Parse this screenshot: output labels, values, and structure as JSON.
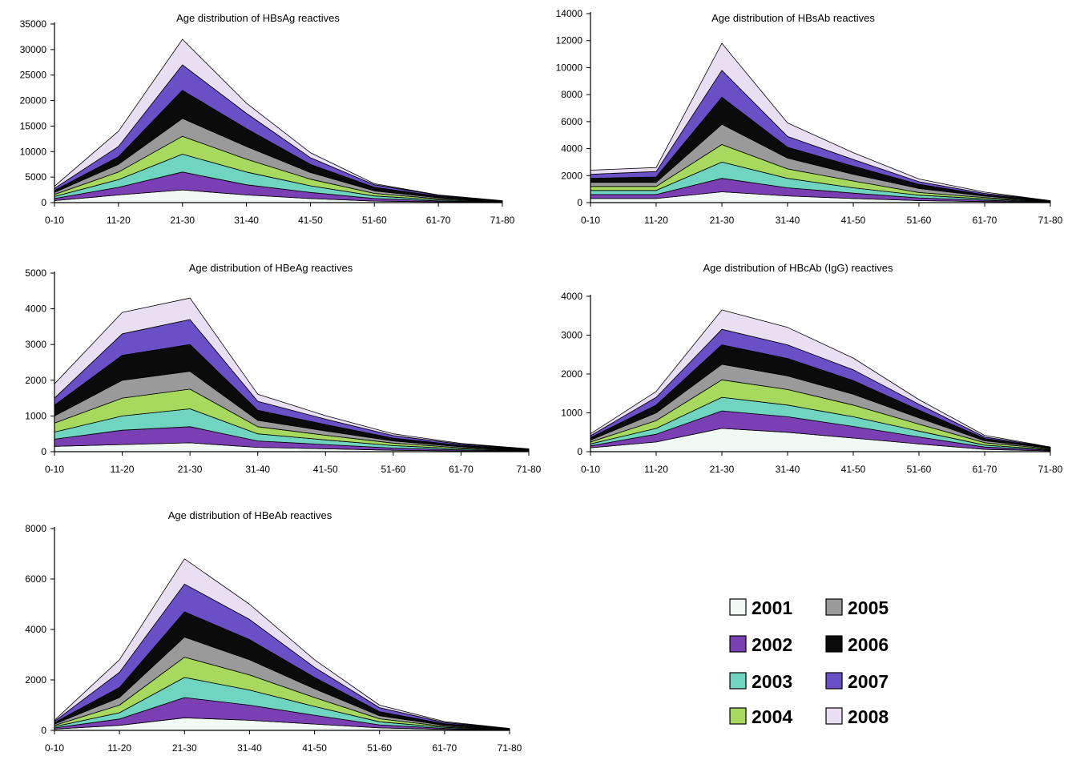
{
  "colors": {
    "2001": "#f1f9f5",
    "2002": "#7a3fb3",
    "2003": "#6fd4c0",
    "2004": "#a6d95e",
    "2005": "#9a9a9a",
    "2006": "#0b0b0b",
    "2007": "#6a4fc6",
    "2008": "#e9def2"
  },
  "legend": [
    {
      "label": "2001",
      "key": "2001"
    },
    {
      "label": "2002",
      "key": "2002"
    },
    {
      "label": "2003",
      "key": "2003"
    },
    {
      "label": "2004",
      "key": "2004"
    },
    {
      "label": "2005",
      "key": "2005"
    },
    {
      "label": "2006",
      "key": "2006"
    },
    {
      "label": "2007",
      "key": "2007"
    },
    {
      "label": "2008",
      "key": "2008"
    }
  ],
  "chart_data": [
    {
      "type": "area",
      "stacked": true,
      "title": "Age distribution of HBsAg reactives",
      "categories": [
        "0-10",
        "11-20",
        "21-30",
        "31-40",
        "41-50",
        "51-60",
        "61-70",
        "71-80"
      ],
      "ylim": [
        0,
        35000
      ],
      "yticks": [
        0,
        5000,
        10000,
        15000,
        20000,
        25000,
        30000,
        35000
      ],
      "series": [
        {
          "name": "2001",
          "values": [
            400,
            1500,
            2500,
            1500,
            800,
            300,
            150,
            50
          ]
        },
        {
          "name": "2002",
          "values": [
            400,
            1500,
            3500,
            2000,
            1200,
            500,
            200,
            50
          ]
        },
        {
          "name": "2003",
          "values": [
            400,
            1500,
            3500,
            2500,
            1300,
            500,
            200,
            50
          ]
        },
        {
          "name": "2004",
          "values": [
            400,
            1500,
            3500,
            2500,
            1300,
            500,
            200,
            50
          ]
        },
        {
          "name": "2005",
          "values": [
            400,
            1500,
            3500,
            2500,
            1300,
            500,
            200,
            50
          ]
        },
        {
          "name": "2006",
          "values": [
            400,
            1500,
            5500,
            3500,
            1600,
            700,
            300,
            50
          ]
        },
        {
          "name": "2007",
          "values": [
            400,
            2000,
            5000,
            3000,
            1300,
            500,
            200,
            50
          ]
        },
        {
          "name": "2008",
          "values": [
            400,
            3000,
            5000,
            2000,
            1000,
            200,
            50,
            50
          ]
        }
      ]
    },
    {
      "type": "area",
      "stacked": true,
      "title": "Age distribution of HBsAb reactives",
      "categories": [
        "0-10",
        "11-20",
        "21-30",
        "31-40",
        "41-50",
        "51-60",
        "61-70",
        "71-80"
      ],
      "ylim": [
        0,
        14000
      ],
      "yticks": [
        0,
        2000,
        4000,
        6000,
        8000,
        10000,
        12000,
        14000
      ],
      "series": [
        {
          "name": "2001",
          "values": [
            300,
            300,
            800,
            500,
            300,
            150,
            80,
            20
          ]
        },
        {
          "name": "2002",
          "values": [
            300,
            300,
            1000,
            600,
            400,
            200,
            100,
            20
          ]
        },
        {
          "name": "2003",
          "values": [
            300,
            300,
            1200,
            700,
            400,
            200,
            100,
            20
          ]
        },
        {
          "name": "2004",
          "values": [
            300,
            300,
            1300,
            700,
            500,
            200,
            100,
            20
          ]
        },
        {
          "name": "2005",
          "values": [
            300,
            300,
            1500,
            800,
            500,
            300,
            100,
            20
          ]
        },
        {
          "name": "2006",
          "values": [
            300,
            400,
            2000,
            800,
            600,
            300,
            100,
            20
          ]
        },
        {
          "name": "2007",
          "values": [
            300,
            400,
            2000,
            800,
            500,
            200,
            100,
            20
          ]
        },
        {
          "name": "2008",
          "values": [
            300,
            300,
            2000,
            1000,
            500,
            200,
            100,
            10
          ]
        }
      ]
    },
    {
      "type": "area",
      "stacked": true,
      "title": "Age distribution of HBeAg reactives",
      "categories": [
        "0-10",
        "11-20",
        "21-30",
        "31-40",
        "41-50",
        "51-60",
        "61-70",
        "71-80"
      ],
      "ylim": [
        0,
        5000
      ],
      "yticks": [
        0,
        1000,
        2000,
        3000,
        4000,
        5000
      ],
      "series": [
        {
          "name": "2001",
          "values": [
            150,
            200,
            250,
            120,
            80,
            40,
            20,
            10
          ]
        },
        {
          "name": "2002",
          "values": [
            200,
            400,
            450,
            180,
            120,
            60,
            30,
            10
          ]
        },
        {
          "name": "2003",
          "values": [
            200,
            400,
            500,
            200,
            130,
            70,
            30,
            10
          ]
        },
        {
          "name": "2004",
          "values": [
            250,
            500,
            550,
            200,
            130,
            70,
            30,
            10
          ]
        },
        {
          "name": "2005",
          "values": [
            200,
            500,
            500,
            180,
            120,
            60,
            30,
            10
          ]
        },
        {
          "name": "2006",
          "values": [
            300,
            700,
            750,
            280,
            180,
            80,
            40,
            10
          ]
        },
        {
          "name": "2007",
          "values": [
            200,
            600,
            700,
            250,
            150,
            70,
            30,
            10
          ]
        },
        {
          "name": "2008",
          "values": [
            400,
            600,
            600,
            200,
            100,
            50,
            20,
            10
          ]
        }
      ]
    },
    {
      "type": "area",
      "stacked": true,
      "title": "Age distribution of HBcAb (IgG) reactives",
      "categories": [
        "0-10",
        "11-20",
        "21-30",
        "31-40",
        "41-50",
        "51-60",
        "61-70",
        "71-80"
      ],
      "ylim": [
        0,
        4000
      ],
      "yticks": [
        0,
        1000,
        2000,
        3000,
        4000
      ],
      "series": [
        {
          "name": "2001",
          "values": [
            100,
            250,
            600,
            500,
            350,
            200,
            60,
            20
          ]
        },
        {
          "name": "2002",
          "values": [
            50,
            200,
            450,
            400,
            300,
            180,
            60,
            20
          ]
        },
        {
          "name": "2003",
          "values": [
            50,
            150,
            350,
            300,
            250,
            150,
            50,
            15
          ]
        },
        {
          "name": "2004",
          "values": [
            50,
            200,
            450,
            400,
            300,
            180,
            60,
            20
          ]
        },
        {
          "name": "2005",
          "values": [
            50,
            200,
            400,
            350,
            280,
            160,
            50,
            15
          ]
        },
        {
          "name": "2006",
          "values": [
            60,
            200,
            500,
            450,
            350,
            200,
            60,
            15
          ]
        },
        {
          "name": "2007",
          "values": [
            50,
            200,
            400,
            350,
            280,
            150,
            40,
            10
          ]
        },
        {
          "name": "2008",
          "values": [
            50,
            150,
            500,
            450,
            300,
            120,
            40,
            5
          ]
        }
      ]
    },
    {
      "type": "area",
      "stacked": true,
      "title": "Age distribution of HBeAb reactives",
      "categories": [
        "0-10",
        "11-20",
        "21-30",
        "31-40",
        "41-50",
        "51-60",
        "61-70",
        "71-80"
      ],
      "ylim": [
        0,
        8000
      ],
      "yticks": [
        0,
        2000,
        4000,
        6000,
        8000
      ],
      "series": [
        {
          "name": "2001",
          "values": [
            50,
            200,
            500,
            400,
            250,
            100,
            40,
            10
          ]
        },
        {
          "name": "2002",
          "values": [
            50,
            250,
            800,
            600,
            350,
            120,
            40,
            10
          ]
        },
        {
          "name": "2003",
          "values": [
            50,
            250,
            800,
            600,
            350,
            120,
            40,
            10
          ]
        },
        {
          "name": "2004",
          "values": [
            50,
            300,
            800,
            600,
            350,
            120,
            40,
            10
          ]
        },
        {
          "name": "2005",
          "values": [
            50,
            300,
            800,
            600,
            350,
            120,
            40,
            10
          ]
        },
        {
          "name": "2006",
          "values": [
            60,
            400,
            1000,
            800,
            450,
            160,
            60,
            10
          ]
        },
        {
          "name": "2007",
          "values": [
            50,
            600,
            1100,
            800,
            400,
            160,
            50,
            10
          ]
        },
        {
          "name": "2008",
          "values": [
            40,
            500,
            1000,
            600,
            300,
            100,
            40,
            10
          ]
        }
      ]
    }
  ]
}
